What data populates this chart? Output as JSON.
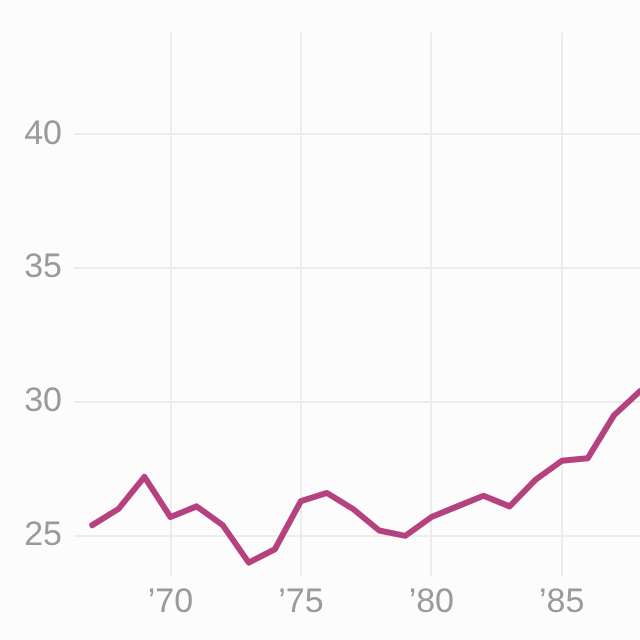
{
  "chart_data": {
    "type": "line",
    "x": [
      1967,
      1968,
      1969,
      1970,
      1971,
      1972,
      1973,
      1974,
      1975,
      1976,
      1977,
      1978,
      1979,
      1980,
      1981,
      1982,
      1983,
      1984,
      1985,
      1986,
      1987,
      1988
    ],
    "series": [
      {
        "color": "#b5427f",
        "values": [
          25.4,
          26.0,
          27.2,
          25.7,
          26.1,
          25.4,
          24.0,
          24.5,
          26.3,
          26.6,
          26.0,
          25.2,
          25.0,
          25.7,
          26.1,
          26.5,
          26.1,
          27.1,
          27.8,
          27.9,
          29.5,
          30.4
        ]
      }
    ],
    "xlim": [
      1966.3,
      1988
    ],
    "ylim": [
      23.5,
      43.8
    ],
    "xticks": [
      {
        "value": 1970,
        "label": "’70"
      },
      {
        "value": 1975,
        "label": "’75"
      },
      {
        "value": 1980,
        "label": "’80"
      },
      {
        "value": 1985,
        "label": "’85"
      }
    ],
    "yticks": [
      25,
      30,
      35,
      40
    ],
    "grid": true,
    "marker": "none",
    "line_style": "solid"
  }
}
